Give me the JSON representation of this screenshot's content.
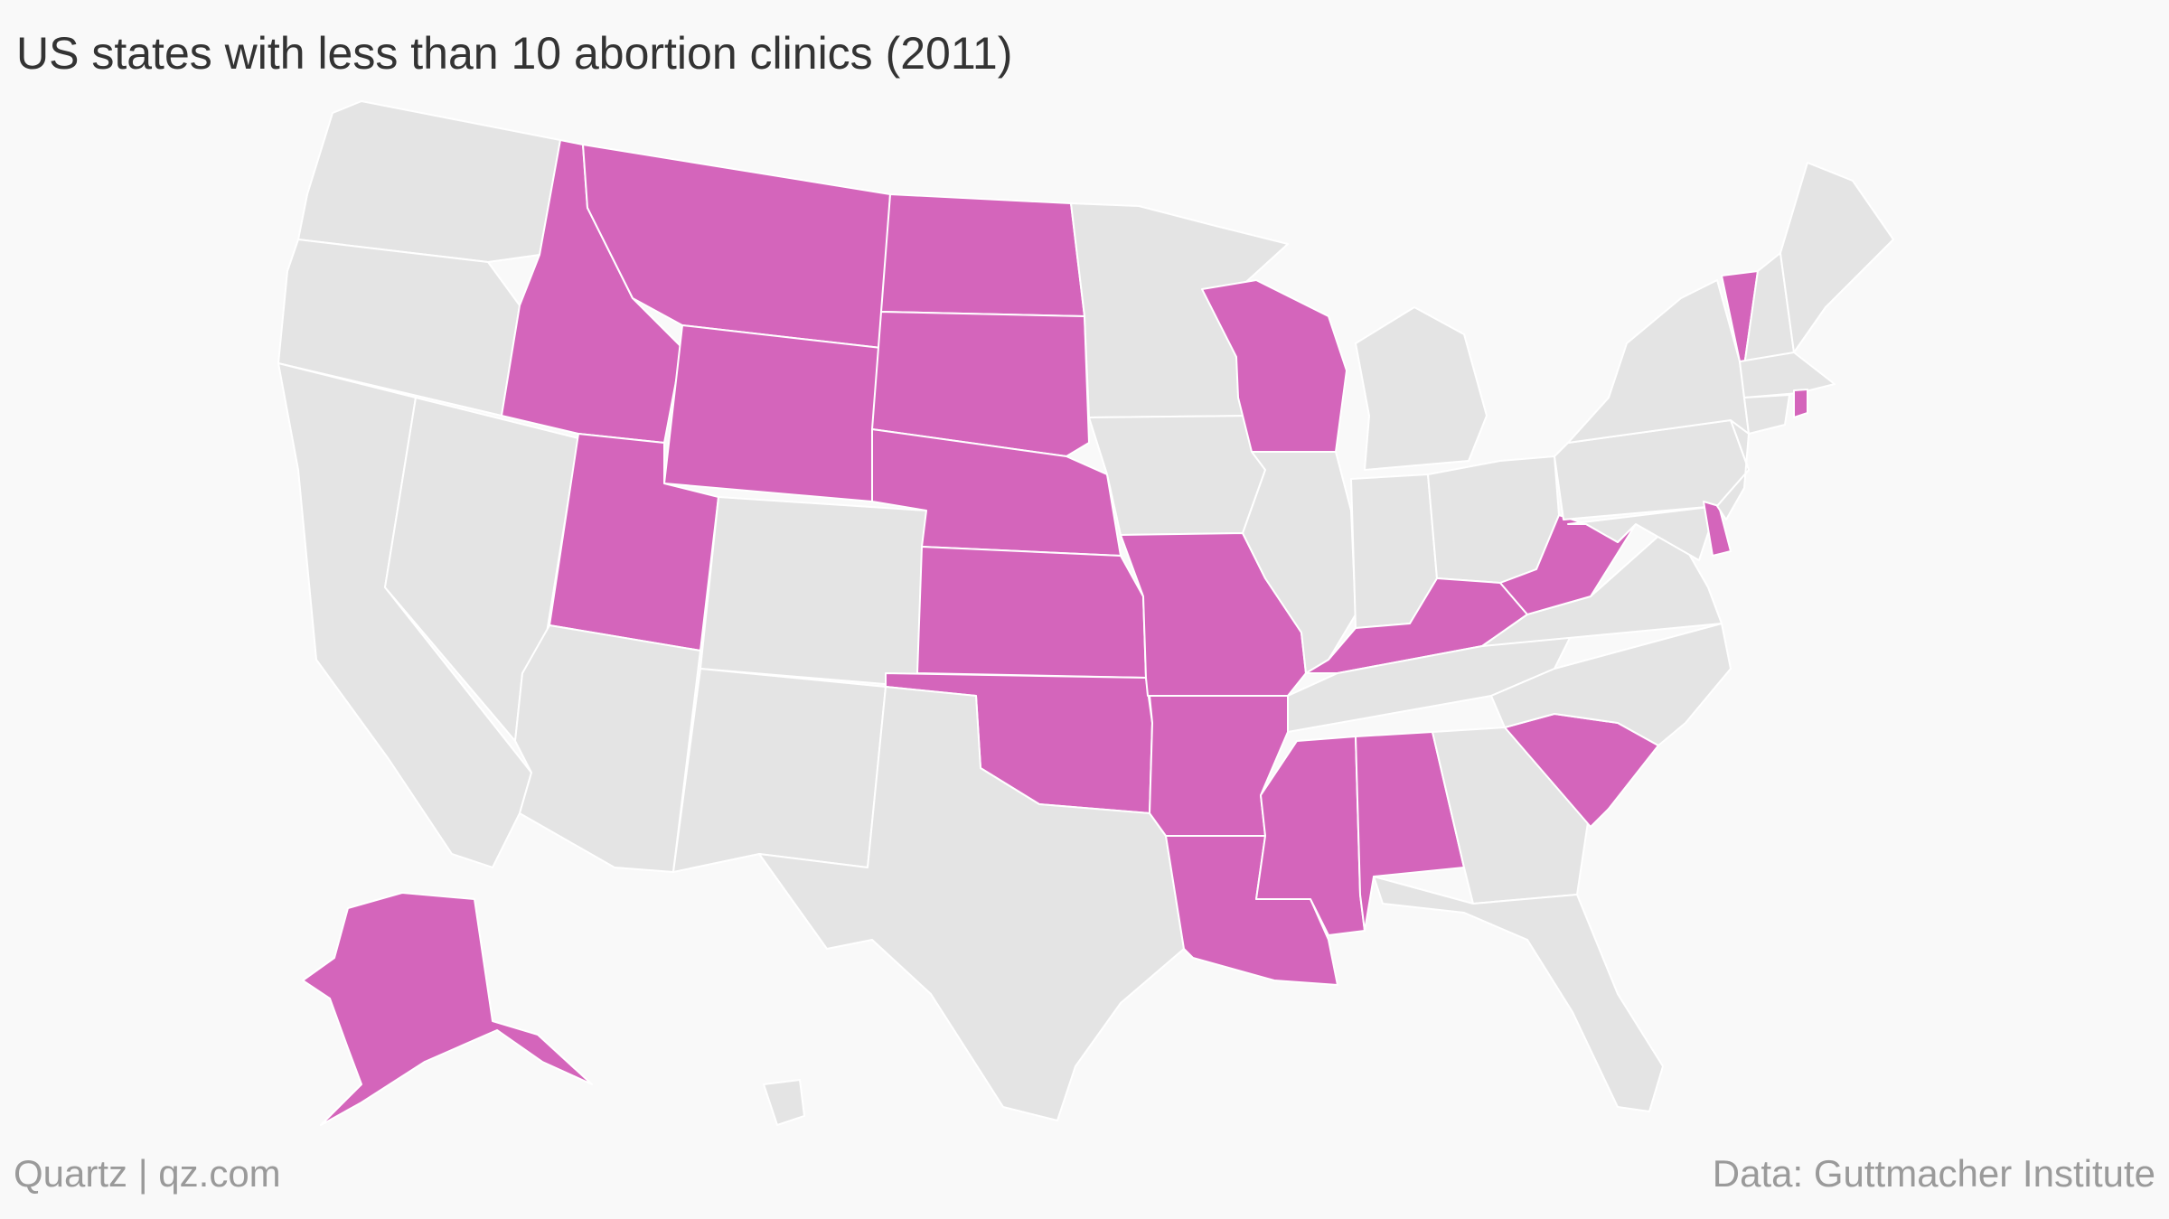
{
  "title": "US states with less than 10 abortion clinics (2011)",
  "footer": {
    "source_left": "Quartz | qz.com",
    "source_right": "Data: Guttmacher Institute"
  },
  "colors": {
    "highlight": "#d465bb",
    "other": "#e4e4e4",
    "border": "#ffffff",
    "background": "#f9f9f9"
  },
  "map_data": {
    "type": "choropleth",
    "region": "United States",
    "highlighted_states": [
      "Alaska",
      "Idaho",
      "Montana",
      "Wyoming",
      "Utah",
      "North Dakota",
      "South Dakota",
      "Nebraska",
      "Kansas",
      "Oklahoma",
      "Missouri",
      "Arkansas",
      "Louisiana",
      "Mississippi",
      "Alabama",
      "Kentucky",
      "West Virginia",
      "Wisconsin",
      "South Carolina",
      "Vermont",
      "Rhode Island",
      "Delaware"
    ],
    "other_states": [
      "Washington",
      "Oregon",
      "California",
      "Nevada",
      "Arizona",
      "Colorado",
      "New Mexico",
      "Texas",
      "Minnesota",
      "Iowa",
      "Illinois",
      "Michigan",
      "Indiana",
      "Ohio",
      "Tennessee",
      "Georgia",
      "Florida",
      "North Carolina",
      "Virginia",
      "Maryland",
      "Pennsylvania",
      "New Jersey",
      "New York",
      "Connecticut",
      "Massachusetts",
      "New Hampshire",
      "Maine",
      "Hawaii"
    ]
  }
}
